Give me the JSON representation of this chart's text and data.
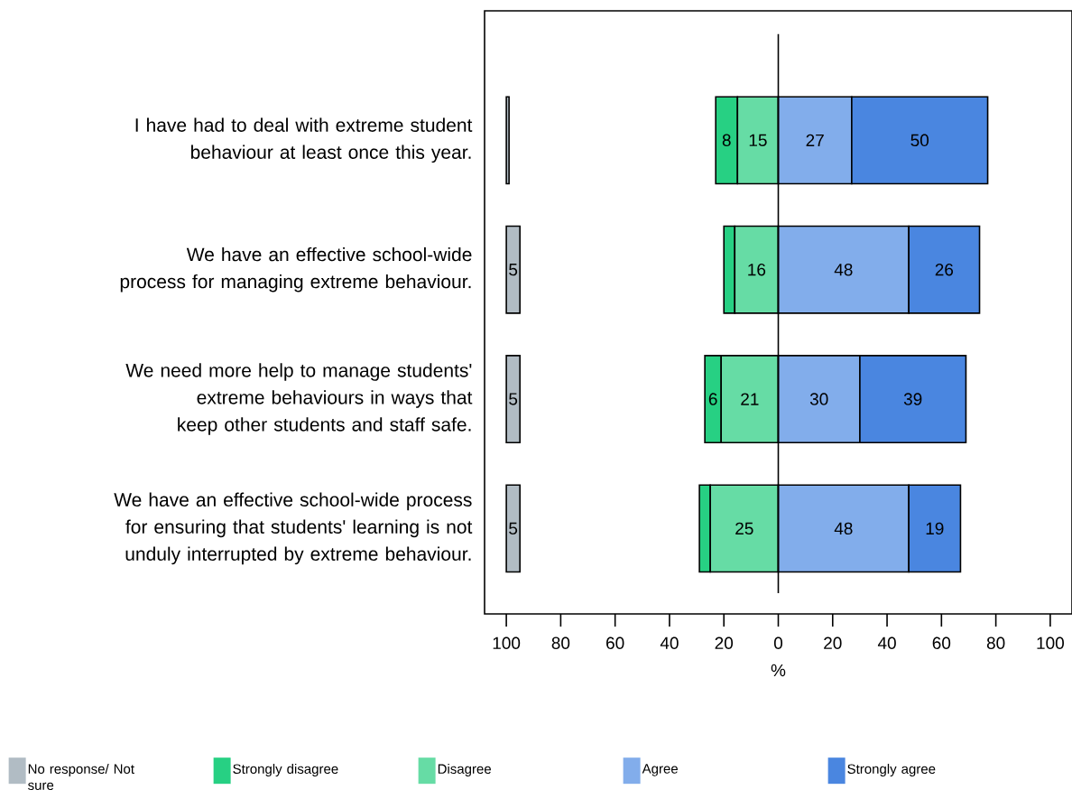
{
  "chart_data": {
    "type": "bar",
    "orientation": "horizontal",
    "xlabel": "%",
    "legend": "bottom",
    "grid": false,
    "categories": [
      "I have had to deal with extreme student behaviour at least once this year.",
      "We have an effective school-wide process for managing extreme behaviour.",
      "We need more help to manage students' extreme behaviours in ways that keep other students and staff safe.",
      "We have an effective school-wide process for ensuring that students' learning is not unduly interrupted by extreme behaviour."
    ],
    "series": [
      {
        "name": "No response/ Not sure",
        "color": "#b1bcc4",
        "values": [
          1,
          5,
          5,
          5
        ],
        "base": [
          -100,
          -100,
          -100,
          -100
        ],
        "value_labels": [
          null,
          "5",
          "5",
          "5"
        ]
      },
      {
        "name": "Strongly disagree",
        "color": "#27d083",
        "values": [
          8,
          4,
          6,
          4
        ],
        "base": [
          -23,
          -20,
          -27,
          -29
        ],
        "value_labels": [
          "8",
          null,
          "6",
          null
        ]
      },
      {
        "name": "Disagree",
        "color": "#66dca5",
        "values": [
          15,
          16,
          21,
          25
        ],
        "base": [
          -15,
          -16,
          -21,
          -25
        ],
        "value_labels": [
          "15",
          "16",
          "21",
          "25"
        ]
      },
      {
        "name": "Agree",
        "color": "#82adeb",
        "values": [
          27,
          48,
          30,
          48
        ],
        "base": [
          0,
          0,
          0,
          0
        ],
        "value_labels": [
          "27",
          "48",
          "30",
          "48"
        ]
      },
      {
        "name": "Strongly agree",
        "color": "#4a86e0",
        "values": [
          50,
          26,
          39,
          19
        ],
        "base": [
          27,
          48,
          30,
          48
        ],
        "value_labels": [
          "50",
          "26",
          "39",
          "19"
        ]
      }
    ],
    "xlim": [
      -108,
      108
    ],
    "xticks": [
      {
        "value": -100,
        "label": "100"
      },
      {
        "value": -80,
        "label": "80"
      },
      {
        "value": -60,
        "label": "60"
      },
      {
        "value": -40,
        "label": "40"
      },
      {
        "value": -20,
        "label": "20"
      },
      0,
      20,
      40,
      60,
      80,
      100
    ],
    "ref_lines": [
      {
        "axis": "x",
        "value": 0
      }
    ]
  }
}
